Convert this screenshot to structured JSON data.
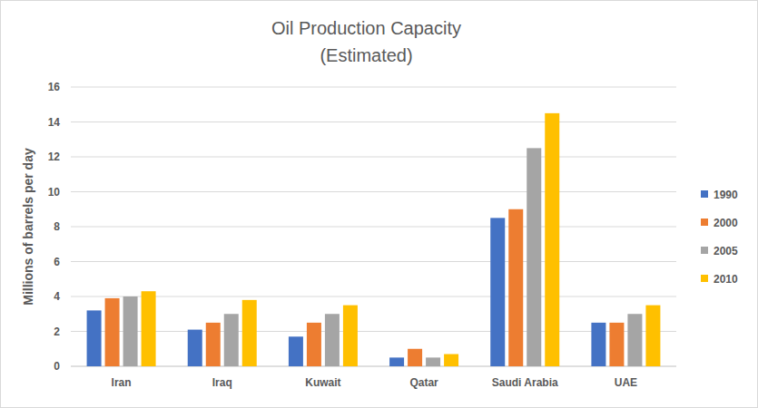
{
  "chart_data": {
    "type": "bar",
    "title": "Oil Production Capacity",
    "subtitle": "(Estimated)",
    "y_label": "Millions of barrels per day",
    "categories": [
      "Iran",
      "Iraq",
      "Kuwait",
      "Qatar",
      "Saudi Arabia",
      "UAE"
    ],
    "series": [
      {
        "name": "1990",
        "color": "#4472c4",
        "values": [
          3.2,
          2.1,
          1.7,
          0.5,
          8.5,
          2.5
        ]
      },
      {
        "name": "2000",
        "color": "#ed7d31",
        "values": [
          3.9,
          2.5,
          2.5,
          1.0,
          9.0,
          2.5
        ]
      },
      {
        "name": "2005",
        "color": "#a5a5a5",
        "values": [
          4.0,
          3.0,
          3.0,
          0.5,
          12.5,
          3.0
        ]
      },
      {
        "name": "2010",
        "color": "#ffc000",
        "values": [
          4.3,
          3.8,
          3.5,
          0.7,
          14.5,
          3.5
        ]
      }
    ],
    "ylim": [
      0,
      16
    ],
    "yticks": [
      0,
      2,
      4,
      6,
      8,
      10,
      12,
      14,
      16
    ],
    "grid": true,
    "legend": "right"
  }
}
